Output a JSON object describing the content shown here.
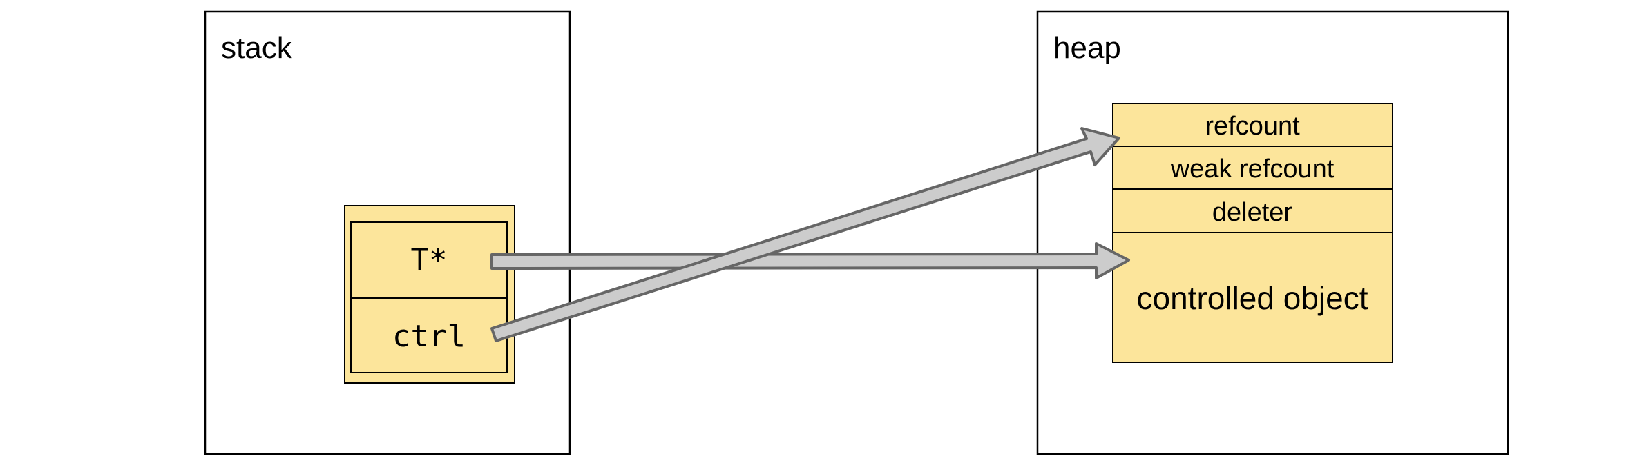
{
  "stack": {
    "label": "stack"
  },
  "heap": {
    "label": "heap"
  },
  "shared_ptr": {
    "fields": [
      "T*",
      "ctrl"
    ]
  },
  "control_block": {
    "fields": [
      "refcount",
      "weak refcount",
      "deleter"
    ],
    "object_label": "controlled object"
  },
  "colors": {
    "box_fill": "#fce59b",
    "arrow_fill": "#cccccc",
    "arrow_stroke": "#666666",
    "border": "#000000"
  }
}
